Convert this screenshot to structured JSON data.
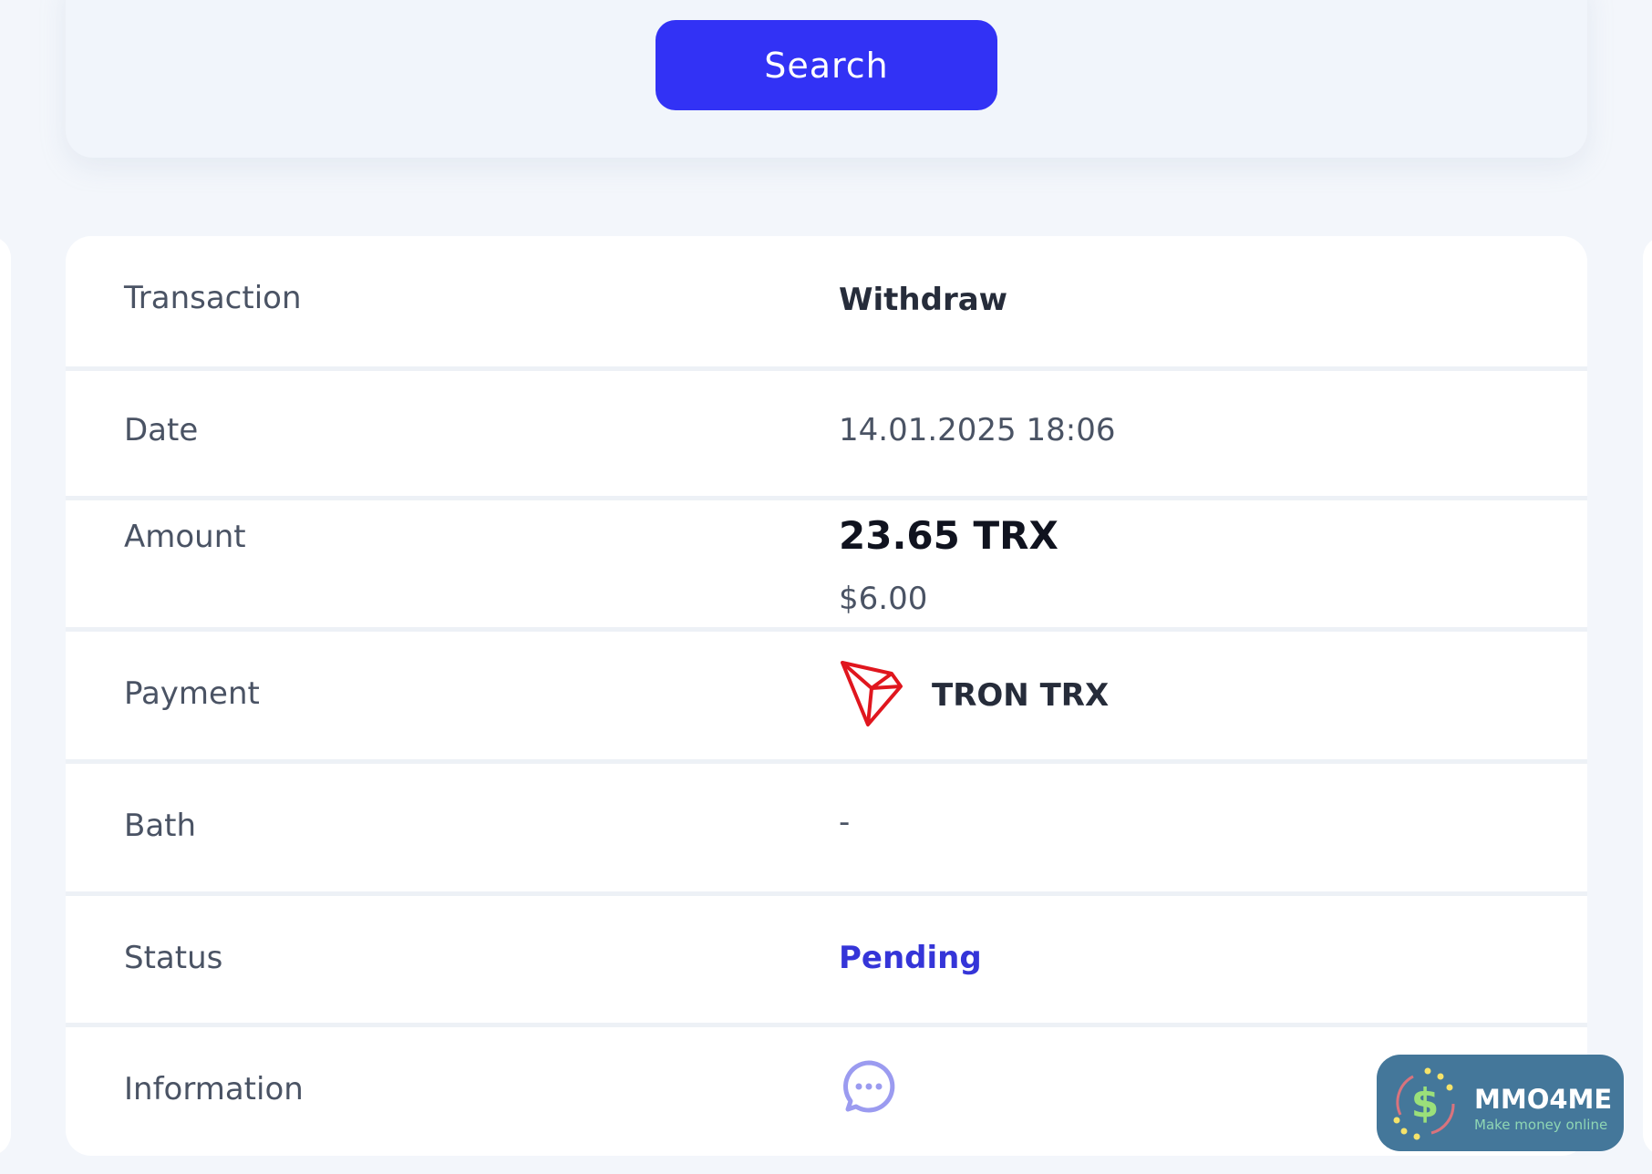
{
  "search": {
    "label": "Search"
  },
  "details": {
    "transaction": {
      "label": "Transaction",
      "value": "Withdraw"
    },
    "date": {
      "label": "Date",
      "value": "14.01.2025 18:06"
    },
    "amount": {
      "label": "Amount",
      "value": "23.65 TRX",
      "usd": "$6.00"
    },
    "payment": {
      "label": "Payment",
      "value": "TRON TRX",
      "icon": "tron-logo-icon"
    },
    "bath": {
      "label": "Bath",
      "value": "-"
    },
    "status": {
      "label": "Status",
      "value": "Pending",
      "color": "#3535d8"
    },
    "information": {
      "label": "Information",
      "icon": "chat-bubble-icon"
    }
  },
  "watermark": {
    "title": "MMO4ME",
    "subtitle": "Make money online"
  },
  "colors": {
    "accent": "#3232f5",
    "tron": "#e0161e",
    "chat": "#9b9bf0"
  }
}
